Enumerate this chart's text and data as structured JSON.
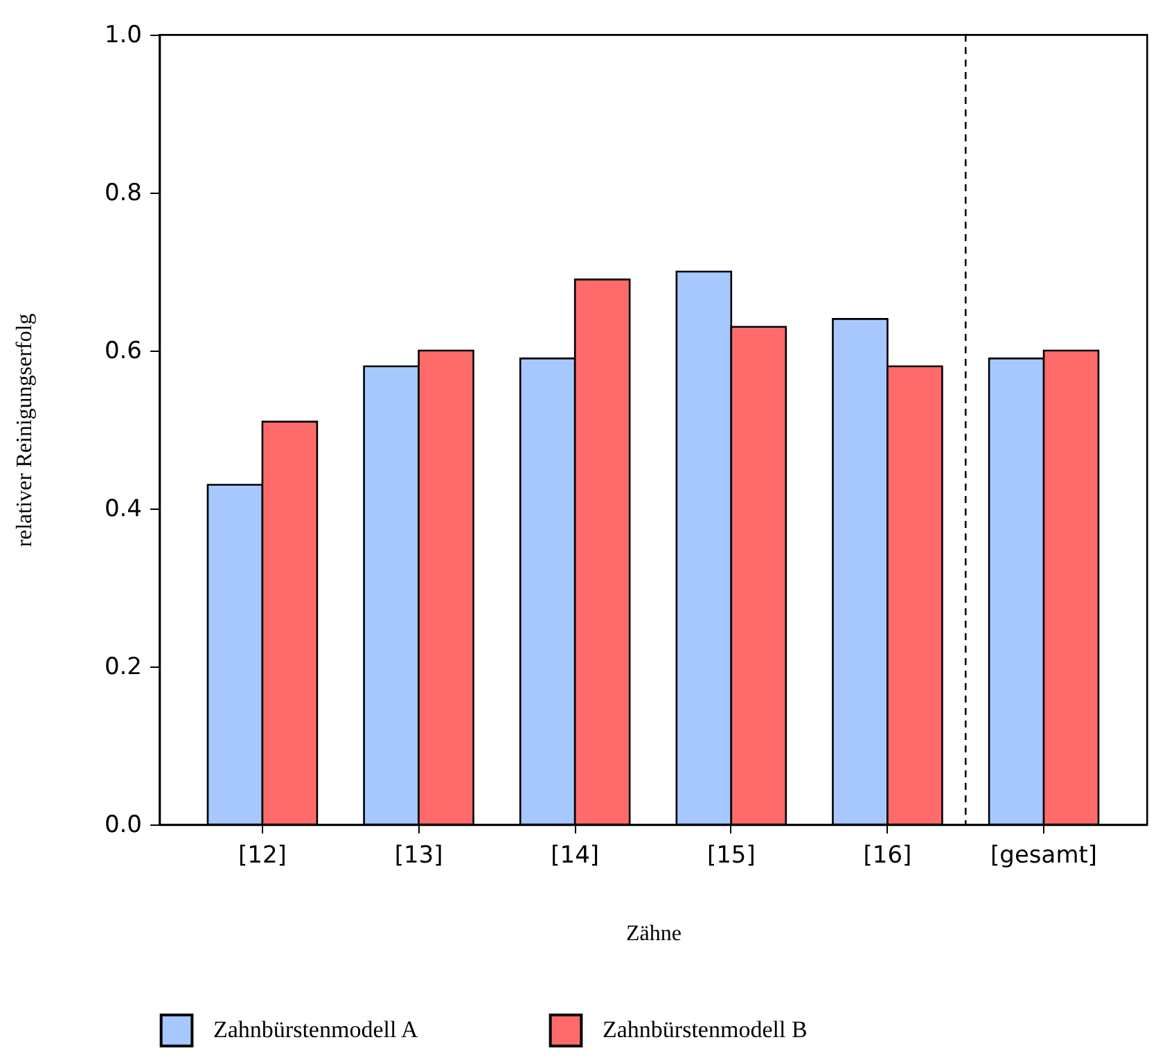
{
  "chart_data": {
    "type": "bar",
    "xlabel": "Zähne",
    "ylabel": "relativer Reinigungserfolg",
    "categories": [
      "[12]",
      "[13]",
      "[14]",
      "[15]",
      "[16]",
      "[gesamt]"
    ],
    "series": [
      {
        "name": "Zahnbürstenmodell A",
        "color": "#a6c8ff",
        "values": [
          0.43,
          0.58,
          0.59,
          0.7,
          0.64,
          0.59
        ]
      },
      {
        "name": "Zahnbürstenmodell B",
        "color": "#ff6b6b",
        "values": [
          0.51,
          0.6,
          0.69,
          0.63,
          0.58,
          0.6
        ]
      }
    ],
    "ylim": [
      0,
      1
    ],
    "yticks": [
      {
        "value": 0,
        "label": "0.0"
      },
      {
        "value": 0.2,
        "label": "0.2"
      },
      {
        "value": 0.4,
        "label": "0.4"
      },
      {
        "value": 0.6,
        "label": "0.6"
      },
      {
        "value": 0.8,
        "label": "0.8"
      },
      {
        "value": 1,
        "label": "1.0"
      }
    ],
    "grid": false,
    "legend": "bottom"
  }
}
